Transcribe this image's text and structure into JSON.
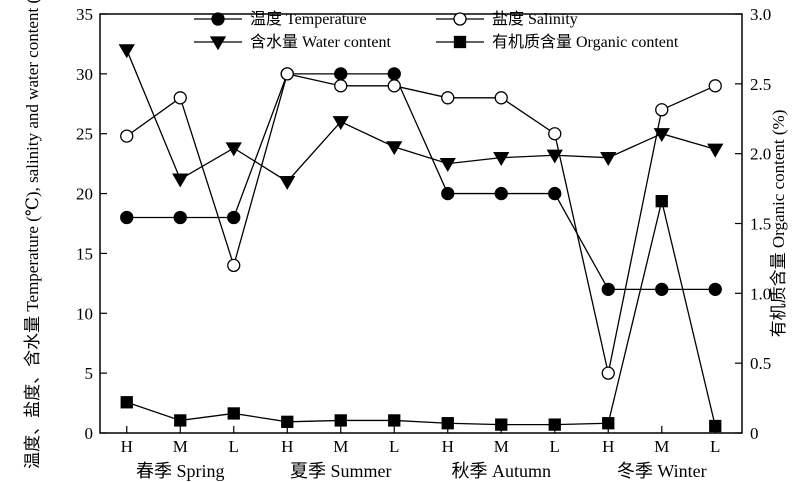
{
  "chart_data": {
    "type": "line",
    "categories": [
      "H",
      "M",
      "L",
      "H",
      "M",
      "L",
      "H",
      "M",
      "L",
      "H",
      "M",
      "L"
    ],
    "groups": [
      {
        "label": "春季 Spring",
        "span": [
          0,
          2
        ]
      },
      {
        "label": "夏季 Summer",
        "span": [
          3,
          5
        ]
      },
      {
        "label": "秋季 Autumn",
        "span": [
          6,
          8
        ]
      },
      {
        "label": "冬季 Winter",
        "span": [
          9,
          11
        ]
      }
    ],
    "ylabel_left": "温度、盐度、含水量 Temperature (℃), salinity and water content (%)",
    "ylabel_right": "有机质含量 Organic content (%)",
    "ylim_left": [
      0,
      35
    ],
    "ylim_right": [
      0,
      3.0
    ],
    "yticks_left": [
      0,
      5,
      10,
      15,
      20,
      25,
      30,
      35
    ],
    "yticks_right": [
      0,
      0.5,
      1.0,
      1.5,
      2.0,
      2.5,
      3.0
    ],
    "ytick_labels_left": [
      "0",
      "5",
      "10",
      "15",
      "20",
      "25",
      "30",
      "35"
    ],
    "ytick_labels_right": [
      "0",
      "0.5",
      "1.0",
      "1.5",
      "2.0",
      "2.5",
      "3.0"
    ],
    "grid": false,
    "legend_position": "top",
    "series": [
      {
        "name": "温度 Temperature",
        "axis": "left",
        "marker": "circle-filled",
        "values": [
          18,
          18,
          18,
          30,
          30,
          30,
          20,
          20,
          20,
          12,
          12,
          12
        ]
      },
      {
        "name": "盐度 Salinity",
        "axis": "left",
        "marker": "circle-open",
        "values": [
          24.8,
          28,
          14,
          30,
          29,
          29,
          28,
          28,
          25,
          5,
          27,
          29
        ]
      },
      {
        "name": "含水量 Water content",
        "axis": "left",
        "marker": "triangle-down",
        "values": [
          32,
          21.2,
          23.8,
          21,
          26,
          23.9,
          22.5,
          23,
          23.2,
          23,
          25,
          23.7
        ]
      },
      {
        "name": "有机质含量 Organic content",
        "axis": "right",
        "marker": "square",
        "values": [
          0.22,
          0.09,
          0.14,
          0.08,
          0.09,
          0.09,
          0.07,
          0.06,
          0.06,
          0.07,
          1.66,
          0.05
        ]
      }
    ]
  }
}
